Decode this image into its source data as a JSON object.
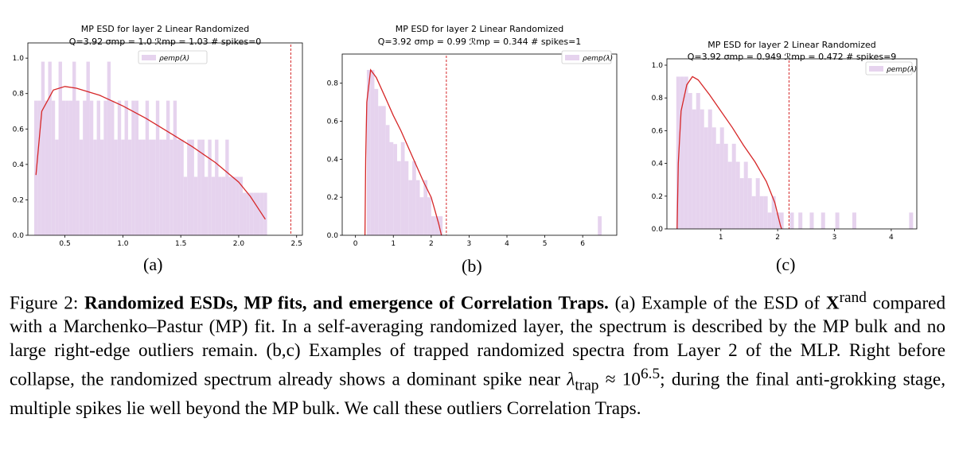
{
  "figure": {
    "panels": [
      {
        "title_line1": "MP ESD for layer 2 Linear Randomized",
        "title_line2": "Q=3.92 σmp = 1.0 ℛmp = 1.03 # spikes=0",
        "legend": "ρemp(λ)",
        "sublabel": "(a)"
      },
      {
        "title_line1": "MP ESD for layer 2 Linear Randomized",
        "title_line2": "Q=3.92 σmp = 0.99 ℛmp = 0.344 # spikes=1",
        "legend": "ρemp(λ)",
        "sublabel": "(b)"
      },
      {
        "title_line1": "MP ESD for layer 2 Linear Randomized",
        "title_line2": "Q=3.92 σmp = 0.949 ℛmp = 0.472 # spikes=9",
        "legend": "ρemp(λ)",
        "sublabel": "(c)"
      }
    ],
    "caption": {
      "label": "Figure 2:",
      "bold": "Randomized ESDs, MP fits, and emergence of Correlation Traps.",
      "part1": "(a) Example of the ESD of",
      "matrix": "X",
      "matrix_sup": "rand",
      "part2": "compared with a Marchenko–Pastur (MP) fit. In a self-averaging randomized layer, the spectrum is described by the MP bulk and no large right-edge outliers remain. (b,c) Examples of trapped randomized spectra from Layer 2 of the MLP. Right before collapse, the randomized spectrum already shows a dominant spike near",
      "lambda": "λ",
      "lambda_sub": "trap",
      "approx": "≈ 10",
      "exp": "6.5",
      "part3": "; during the final anti-grokking stage, multiple spikes lie well beyond the MP bulk. We call these outliers Correlation Traps."
    }
  },
  "colors": {
    "bar": "#e6d3ee",
    "curve": "#d62728",
    "vline": "#d62728",
    "axis": "#000000"
  },
  "chart_data": [
    {
      "type": "bar",
      "title": "MP ESD for layer 2 Linear Randomized",
      "subtitle": "Q=3.92 σmp = 1.0 ℛmp = 1.03 # spikes=0",
      "xlim": [
        0.18,
        2.55
      ],
      "ylim": [
        0.0,
        1.05
      ],
      "xticks": [
        0.5,
        1.0,
        1.5,
        2.0,
        2.5
      ],
      "xtick_labels": [
        "0.5",
        "1.0",
        "1.5",
        "2.0",
        "2.5"
      ],
      "yticks": [
        0.0,
        0.2,
        0.4,
        0.6,
        0.8,
        1.0
      ],
      "ytick_labels": [
        "0.0",
        "0.2",
        "0.4",
        "0.6",
        "0.8",
        "1.0"
      ],
      "legend_placement": "top-center",
      "vline_x": 2.45,
      "mp_fit": [
        [
          0.25,
          0.34
        ],
        [
          0.3,
          0.7
        ],
        [
          0.4,
          0.82
        ],
        [
          0.5,
          0.84
        ],
        [
          0.6,
          0.83
        ],
        [
          0.8,
          0.79
        ],
        [
          1.0,
          0.73
        ],
        [
          1.2,
          0.66
        ],
        [
          1.4,
          0.58
        ],
        [
          1.6,
          0.5
        ],
        [
          1.8,
          0.41
        ],
        [
          2.0,
          0.3
        ],
        [
          2.1,
          0.22
        ],
        [
          2.2,
          0.12
        ],
        [
          2.23,
          0.09
        ]
      ],
      "bars": [
        [
          0.25,
          0.76
        ],
        [
          0.28,
          0.76
        ],
        [
          0.31,
          0.98
        ],
        [
          0.34,
          0.76
        ],
        [
          0.37,
          0.98
        ],
        [
          0.4,
          0.76
        ],
        [
          0.43,
          0.54
        ],
        [
          0.46,
          0.98
        ],
        [
          0.49,
          0.76
        ],
        [
          0.52,
          0.76
        ],
        [
          0.55,
          0.76
        ],
        [
          0.58,
          0.98
        ],
        [
          0.61,
          0.76
        ],
        [
          0.64,
          0.54
        ],
        [
          0.67,
          0.76
        ],
        [
          0.7,
          0.98
        ],
        [
          0.73,
          0.76
        ],
        [
          0.76,
          0.54
        ],
        [
          0.79,
          0.76
        ],
        [
          0.82,
          0.54
        ],
        [
          0.85,
          0.76
        ],
        [
          0.88,
          0.98
        ],
        [
          0.91,
          0.76
        ],
        [
          0.94,
          0.54
        ],
        [
          0.97,
          0.76
        ],
        [
          1.0,
          0.54
        ],
        [
          1.03,
          0.76
        ],
        [
          1.06,
          0.54
        ],
        [
          1.09,
          0.76
        ],
        [
          1.12,
          0.76
        ],
        [
          1.15,
          0.54
        ],
        [
          1.18,
          0.54
        ],
        [
          1.21,
          0.76
        ],
        [
          1.24,
          0.54
        ],
        [
          1.27,
          0.54
        ],
        [
          1.3,
          0.76
        ],
        [
          1.33,
          0.54
        ],
        [
          1.36,
          0.54
        ],
        [
          1.39,
          0.76
        ],
        [
          1.42,
          0.54
        ],
        [
          1.45,
          0.76
        ],
        [
          1.48,
          0.54
        ],
        [
          1.51,
          0.54
        ],
        [
          1.54,
          0.33
        ],
        [
          1.57,
          0.54
        ],
        [
          1.6,
          0.54
        ],
        [
          1.63,
          0.33
        ],
        [
          1.66,
          0.54
        ],
        [
          1.69,
          0.54
        ],
        [
          1.72,
          0.33
        ],
        [
          1.75,
          0.54
        ],
        [
          1.78,
          0.33
        ],
        [
          1.81,
          0.54
        ],
        [
          1.84,
          0.33
        ],
        [
          1.87,
          0.33
        ],
        [
          1.9,
          0.54
        ],
        [
          1.93,
          0.33
        ],
        [
          1.96,
          0.33
        ],
        [
          1.99,
          0.33
        ],
        [
          2.02,
          0.33
        ],
        [
          2.05,
          0.24
        ],
        [
          2.08,
          0.24
        ],
        [
          2.11,
          0.24
        ],
        [
          2.14,
          0.24
        ],
        [
          2.17,
          0.24
        ],
        [
          2.2,
          0.24
        ],
        [
          2.23,
          0.24
        ]
      ]
    },
    {
      "type": "bar",
      "title": "MP ESD for layer 2 Linear Randomized",
      "subtitle": "Q=3.92 σmp = 0.99 ℛmp = 0.344 # spikes=1",
      "xlim": [
        -0.35,
        6.9
      ],
      "ylim": [
        0.0,
        0.92
      ],
      "xticks": [
        0,
        1,
        2,
        3,
        4,
        5,
        6
      ],
      "xtick_labels": [
        "0",
        "1",
        "2",
        "3",
        "4",
        "5",
        "6"
      ],
      "yticks": [
        0.0,
        0.2,
        0.4,
        0.6,
        0.8
      ],
      "ytick_labels": [
        "0.0",
        "0.2",
        "0.4",
        "0.6",
        "0.8"
      ],
      "legend_placement": "top-right",
      "vline_x": 2.4,
      "mp_fit": [
        [
          0.25,
          0.0
        ],
        [
          0.27,
          0.4
        ],
        [
          0.3,
          0.7
        ],
        [
          0.4,
          0.87
        ],
        [
          0.55,
          0.83
        ],
        [
          0.8,
          0.72
        ],
        [
          1.0,
          0.63
        ],
        [
          1.2,
          0.55
        ],
        [
          1.4,
          0.46
        ],
        [
          1.6,
          0.37
        ],
        [
          1.8,
          0.28
        ],
        [
          2.0,
          0.2
        ],
        [
          2.1,
          0.13
        ],
        [
          2.2,
          0.06
        ],
        [
          2.27,
          0.0
        ]
      ],
      "bars": [
        [
          0.35,
          0.87
        ],
        [
          0.45,
          0.87
        ],
        [
          0.55,
          0.77
        ],
        [
          0.65,
          0.68
        ],
        [
          0.75,
          0.68
        ],
        [
          0.85,
          0.58
        ],
        [
          0.95,
          0.49
        ],
        [
          1.05,
          0.48
        ],
        [
          1.15,
          0.39
        ],
        [
          1.25,
          0.49
        ],
        [
          1.35,
          0.39
        ],
        [
          1.45,
          0.29
        ],
        [
          1.55,
          0.39
        ],
        [
          1.65,
          0.29
        ],
        [
          1.75,
          0.2
        ],
        [
          1.85,
          0.29
        ],
        [
          1.95,
          0.2
        ],
        [
          2.05,
          0.1
        ],
        [
          2.15,
          0.1
        ],
        [
          2.25,
          0.1
        ],
        [
          6.45,
          0.1
        ]
      ]
    },
    {
      "type": "bar",
      "title": "MP ESD for layer 2 Linear Randomized",
      "subtitle": "Q=3.92 σmp = 0.949 ℛmp = 0.472 # spikes=9",
      "xlim": [
        0.05,
        4.45
      ],
      "ylim": [
        0.0,
        1.0
      ],
      "xticks": [
        1,
        2,
        3,
        4
      ],
      "xtick_labels": [
        "1",
        "2",
        "3",
        "4"
      ],
      "yticks": [
        0.0,
        0.2,
        0.4,
        0.6,
        0.8,
        1.0
      ],
      "ytick_labels": [
        "0.0",
        "0.2",
        "0.4",
        "0.6",
        "0.8",
        "1.0"
      ],
      "legend_placement": "top-right",
      "vline_x": 2.2,
      "mp_fit": [
        [
          0.23,
          0.0
        ],
        [
          0.25,
          0.4
        ],
        [
          0.3,
          0.72
        ],
        [
          0.4,
          0.88
        ],
        [
          0.5,
          0.93
        ],
        [
          0.6,
          0.91
        ],
        [
          0.8,
          0.82
        ],
        [
          1.0,
          0.72
        ],
        [
          1.2,
          0.62
        ],
        [
          1.4,
          0.51
        ],
        [
          1.6,
          0.41
        ],
        [
          1.8,
          0.29
        ],
        [
          1.95,
          0.16
        ],
        [
          2.05,
          0.02
        ],
        [
          2.07,
          0.0
        ]
      ],
      "bars": [
        [
          0.25,
          0.93
        ],
        [
          0.32,
          0.93
        ],
        [
          0.39,
          0.93
        ],
        [
          0.46,
          0.83
        ],
        [
          0.53,
          0.73
        ],
        [
          0.6,
          0.83
        ],
        [
          0.67,
          0.73
        ],
        [
          0.74,
          0.62
        ],
        [
          0.81,
          0.73
        ],
        [
          0.88,
          0.62
        ],
        [
          0.95,
          0.52
        ],
        [
          1.02,
          0.62
        ],
        [
          1.09,
          0.52
        ],
        [
          1.16,
          0.41
        ],
        [
          1.23,
          0.52
        ],
        [
          1.3,
          0.41
        ],
        [
          1.37,
          0.31
        ],
        [
          1.44,
          0.41
        ],
        [
          1.51,
          0.31
        ],
        [
          1.58,
          0.2
        ],
        [
          1.65,
          0.31
        ],
        [
          1.72,
          0.2
        ],
        [
          1.79,
          0.2
        ],
        [
          1.86,
          0.1
        ],
        [
          1.93,
          0.2
        ],
        [
          2.0,
          0.1
        ],
        [
          2.07,
          0.1
        ],
        [
          2.25,
          0.1
        ],
        [
          2.4,
          0.1
        ],
        [
          2.6,
          0.1
        ],
        [
          2.8,
          0.1
        ],
        [
          3.05,
          0.1
        ],
        [
          3.35,
          0.1
        ],
        [
          4.35,
          0.1
        ]
      ]
    }
  ]
}
